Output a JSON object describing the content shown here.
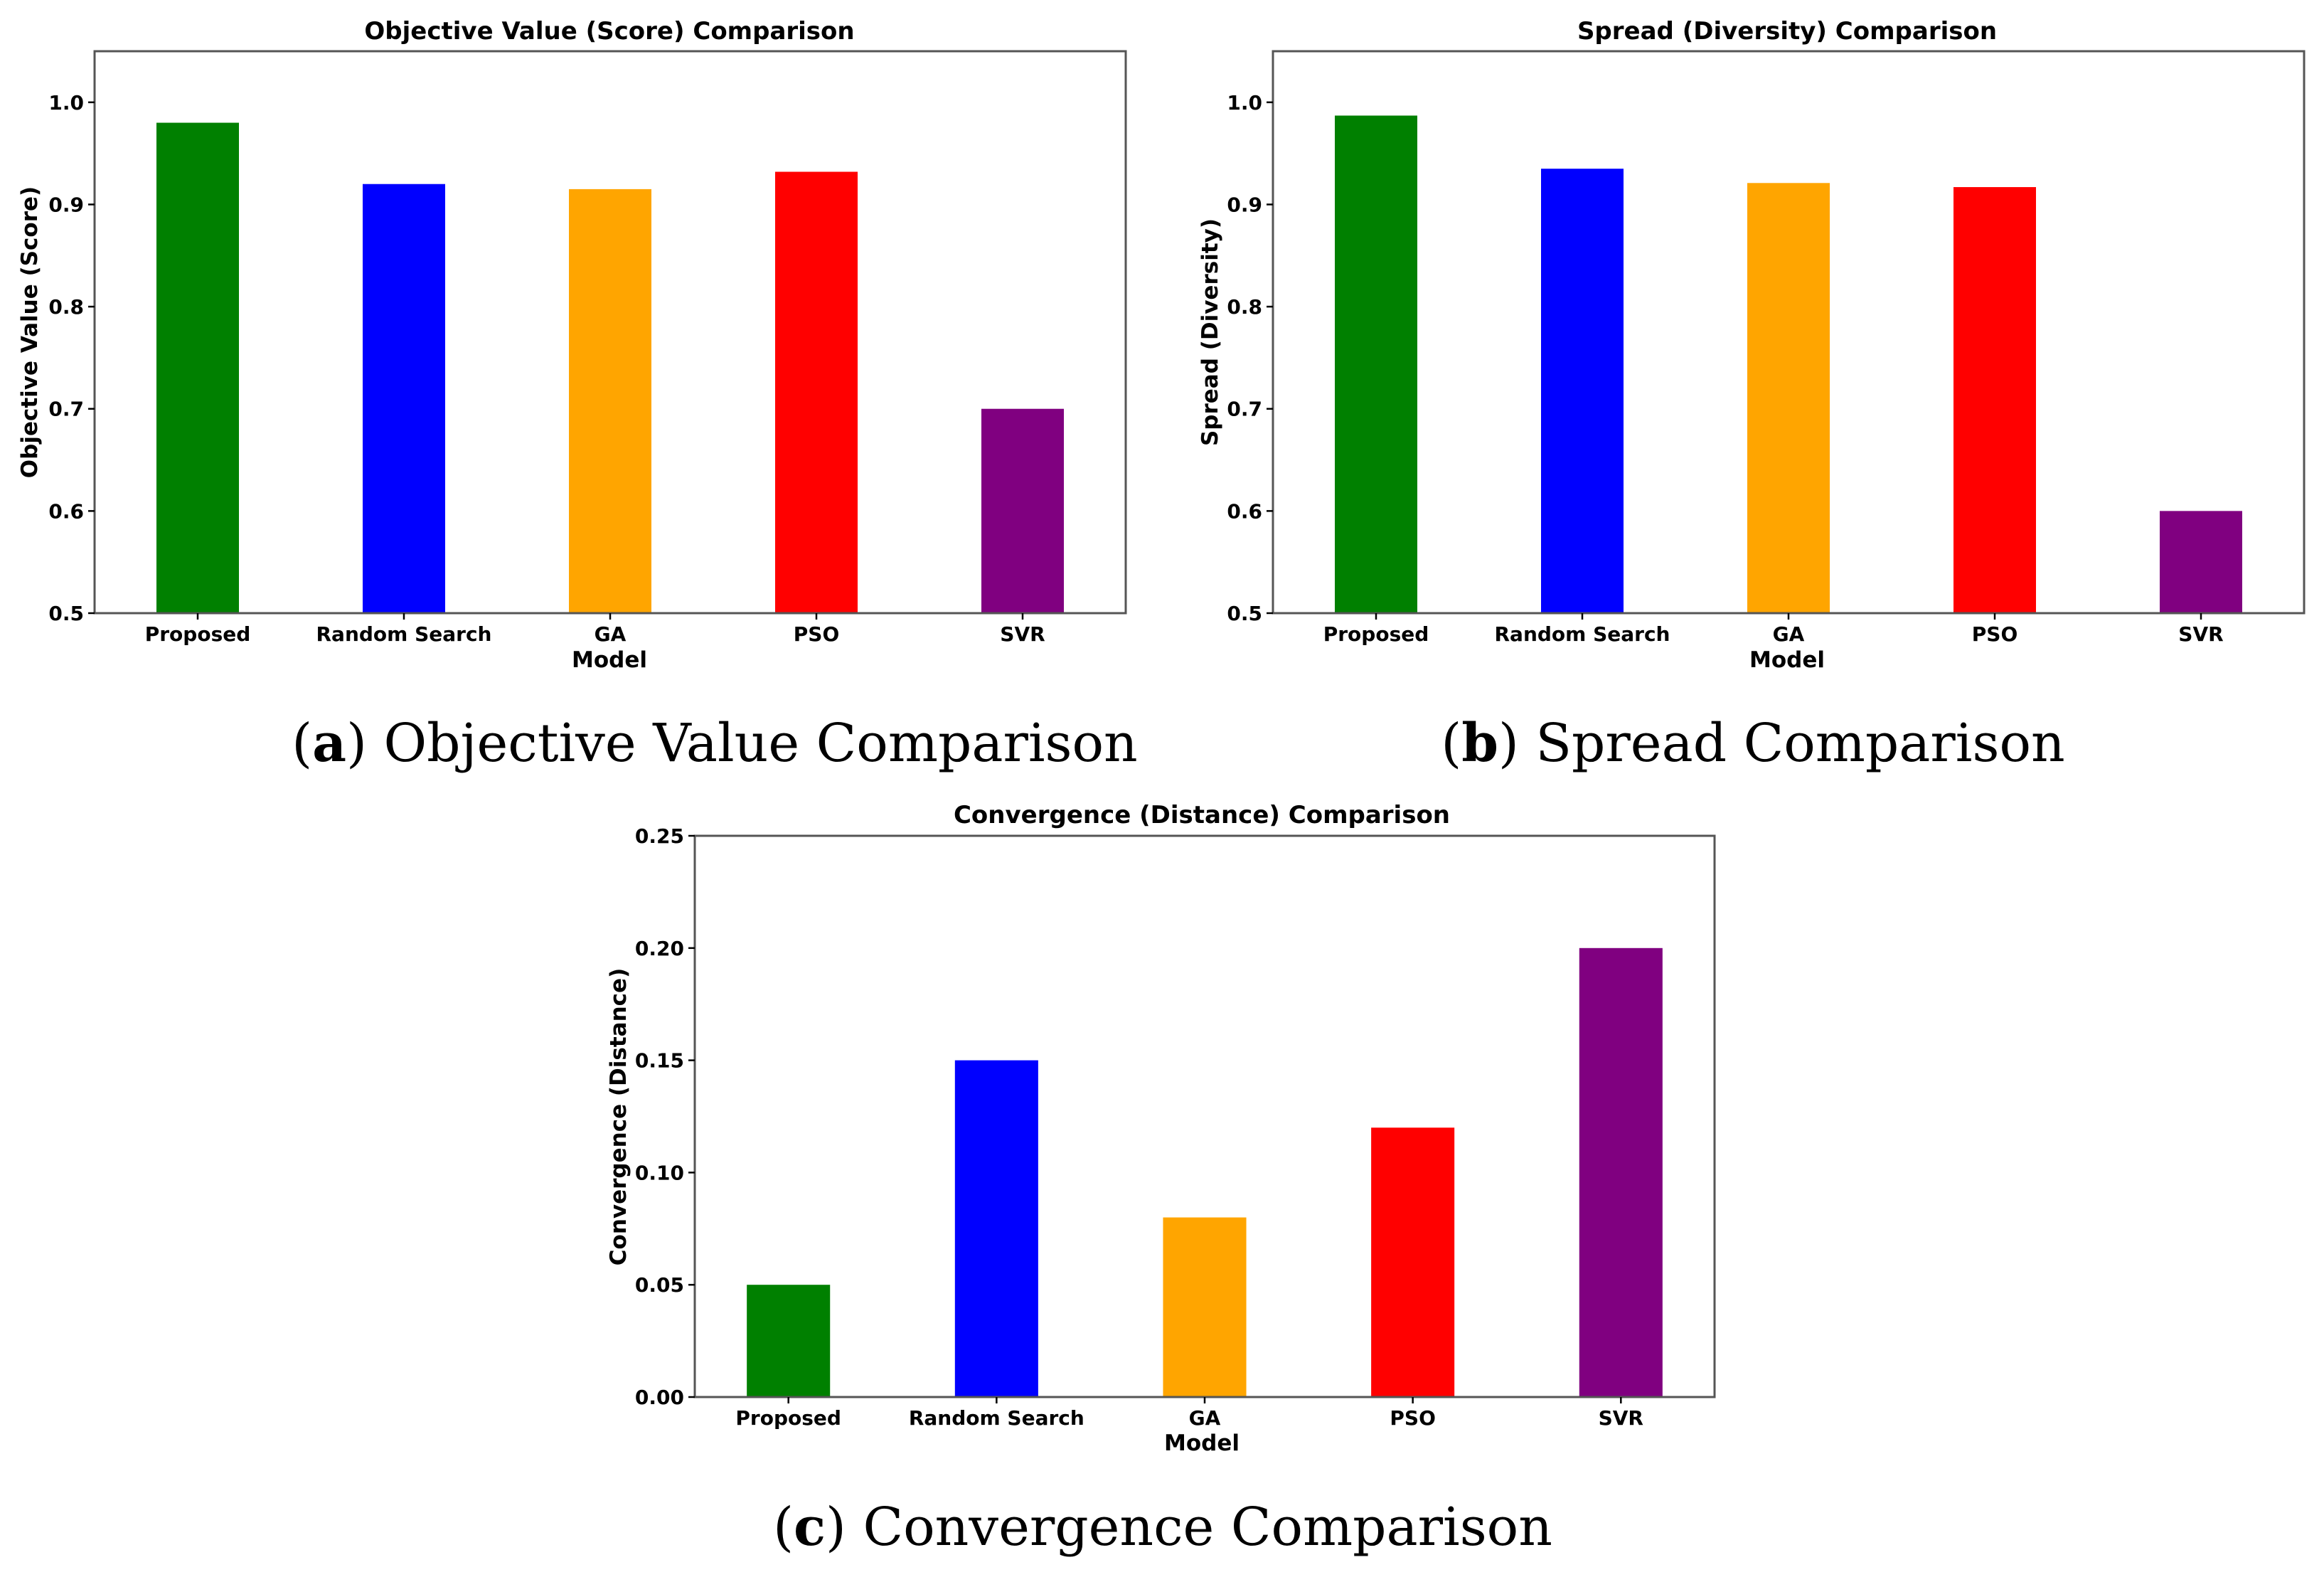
{
  "figure": {
    "captions": [
      {
        "open": "(",
        "letter": "a",
        "close": ")",
        "text": " Objective Value Comparison"
      },
      {
        "open": "(",
        "letter": "b",
        "close": ")",
        "text": " Spread Comparison"
      },
      {
        "open": "(",
        "letter": "c",
        "close": ")",
        "text": " Convergence Comparison"
      }
    ]
  },
  "chart_data": [
    {
      "type": "bar",
      "title": "Objective Value (Score) Comparison",
      "xlabel": "Model",
      "ylabel": "Objective Value (Score)",
      "categories": [
        "Proposed",
        "Random Search",
        "GA",
        "PSO",
        "SVR"
      ],
      "values": [
        0.98,
        0.92,
        0.915,
        0.932,
        0.7
      ],
      "colors": [
        "#008000",
        "#0000ff",
        "#ffa500",
        "#ff0000",
        "#800080"
      ],
      "ylim": [
        0.5,
        1.05
      ],
      "yticks": [
        0.5,
        0.6,
        0.7,
        0.8,
        0.9,
        1.0
      ],
      "ytick_labels": [
        "0.5",
        "0.6",
        "0.7",
        "0.8",
        "0.9",
        "1.0"
      ],
      "grid": false
    },
    {
      "type": "bar",
      "title": "Spread (Diversity) Comparison",
      "xlabel": "Model",
      "ylabel": "Spread (Diversity)",
      "categories": [
        "Proposed",
        "Random Search",
        "GA",
        "PSO",
        "SVR"
      ],
      "values": [
        0.987,
        0.935,
        0.921,
        0.917,
        0.6
      ],
      "colors": [
        "#008000",
        "#0000ff",
        "#ffa500",
        "#ff0000",
        "#800080"
      ],
      "ylim": [
        0.5,
        1.05
      ],
      "yticks": [
        0.5,
        0.6,
        0.7,
        0.8,
        0.9,
        1.0
      ],
      "ytick_labels": [
        "0.5",
        "0.6",
        "0.7",
        "0.8",
        "0.9",
        "1.0"
      ],
      "grid": false
    },
    {
      "type": "bar",
      "title": "Convergence (Distance) Comparison",
      "xlabel": "Model",
      "ylabel": "Convergence (Distance)",
      "categories": [
        "Proposed",
        "Random Search",
        "GA",
        "PSO",
        "SVR"
      ],
      "values": [
        0.05,
        0.15,
        0.08,
        0.12,
        0.2
      ],
      "colors": [
        "#008000",
        "#0000ff",
        "#ffa500",
        "#ff0000",
        "#800080"
      ],
      "ylim": [
        0.0,
        0.25
      ],
      "yticks": [
        0.0,
        0.05,
        0.1,
        0.15,
        0.2,
        0.25
      ],
      "ytick_labels": [
        "0.00",
        "0.05",
        "0.10",
        "0.15",
        "0.20",
        "0.25"
      ],
      "grid": false
    }
  ]
}
